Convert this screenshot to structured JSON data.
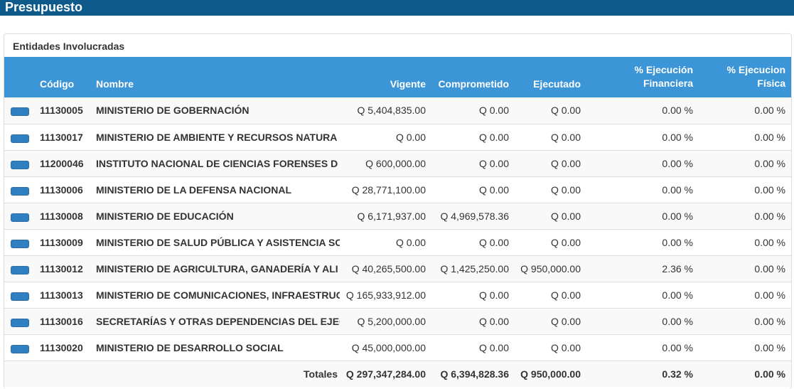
{
  "header": {
    "title": "Presupuesto"
  },
  "panel": {
    "title": "Entidades Involucradas"
  },
  "table": {
    "headers": {
      "codigo": "Código",
      "nombre": "Nombre",
      "vigente": "Vigente",
      "comprometido": "Comprometido",
      "ejecutado": "Ejecutado",
      "ejec_fin_1": "% Ejecución",
      "ejec_fin_2": "Financiera",
      "ejec_fis_1": "% Ejecucion",
      "ejec_fis_2": "Física"
    },
    "rows": [
      {
        "codigo": "11130005",
        "nombre": "MINISTERIO DE GOBERNACIÓN",
        "vigente": "Q 5,404,835.00",
        "comprometido": "Q 0.00",
        "ejecutado": "Q 0.00",
        "financiera": "0.00 %",
        "fisica": "0.00 %"
      },
      {
        "codigo": "11130017",
        "nombre": "MINISTERIO DE AMBIENTE Y RECURSOS NATURA",
        "vigente": "Q 0.00",
        "comprometido": "Q 0.00",
        "ejecutado": "Q 0.00",
        "financiera": "0.00 %",
        "fisica": "0.00 %"
      },
      {
        "codigo": "11200046",
        "nombre": "INSTITUTO NACIONAL DE CIENCIAS FORENSES D",
        "vigente": "Q 600,000.00",
        "comprometido": "Q 0.00",
        "ejecutado": "Q 0.00",
        "financiera": "0.00 %",
        "fisica": "0.00 %"
      },
      {
        "codigo": "11130006",
        "nombre": "MINISTERIO DE LA DEFENSA NACIONAL",
        "vigente": "Q 28,771,100.00",
        "comprometido": "Q 0.00",
        "ejecutado": "Q 0.00",
        "financiera": "0.00 %",
        "fisica": "0.00 %"
      },
      {
        "codigo": "11130008",
        "nombre": "MINISTERIO DE EDUCACIÓN",
        "vigente": "Q 6,171,937.00",
        "comprometido": "Q 4,969,578.36",
        "ejecutado": "Q 0.00",
        "financiera": "0.00 %",
        "fisica": "0.00 %"
      },
      {
        "codigo": "11130009",
        "nombre": "MINISTERIO DE SALUD PÚBLICA Y ASISTENCIA SO",
        "vigente": "Q 0.00",
        "comprometido": "Q 0.00",
        "ejecutado": "Q 0.00",
        "financiera": "0.00 %",
        "fisica": "0.00 %"
      },
      {
        "codigo": "11130012",
        "nombre": "MINISTERIO DE AGRICULTURA, GANADERÍA Y ALI",
        "vigente": "Q 40,265,500.00",
        "comprometido": "Q 1,425,250.00",
        "ejecutado": "Q 950,000.00",
        "financiera": "2.36 %",
        "fisica": "0.00 %"
      },
      {
        "codigo": "11130013",
        "nombre": "MINISTERIO DE COMUNICACIONES, INFRAESTRUC",
        "vigente": "Q 165,933,912.00",
        "comprometido": "Q 0.00",
        "ejecutado": "Q 0.00",
        "financiera": "0.00 %",
        "fisica": "0.00 %"
      },
      {
        "codigo": "11130016",
        "nombre": "SECRETARÍAS Y OTRAS DEPENDENCIAS DEL EJEC",
        "vigente": "Q 5,200,000.00",
        "comprometido": "Q 0.00",
        "ejecutado": "Q 0.00",
        "financiera": "0.00 %",
        "fisica": "0.00 %"
      },
      {
        "codigo": "11130020",
        "nombre": "MINISTERIO DE DESARROLLO SOCIAL",
        "vigente": "Q 45,000,000.00",
        "comprometido": "Q 0.00",
        "ejecutado": "Q 0.00",
        "financiera": "0.00 %",
        "fisica": "0.00 %"
      }
    ],
    "totals": {
      "label": "Totales",
      "vigente": "Q 297,347,284.00",
      "comprometido": "Q 6,394,828.36",
      "ejecutado": "Q 950,000.00",
      "financiera": "0.32 %",
      "fisica": "0.00 %"
    }
  },
  "colors": {
    "header_bar": "#0e5a8a",
    "table_header": "#3c95d6",
    "row_button": "#2f7fc1"
  }
}
